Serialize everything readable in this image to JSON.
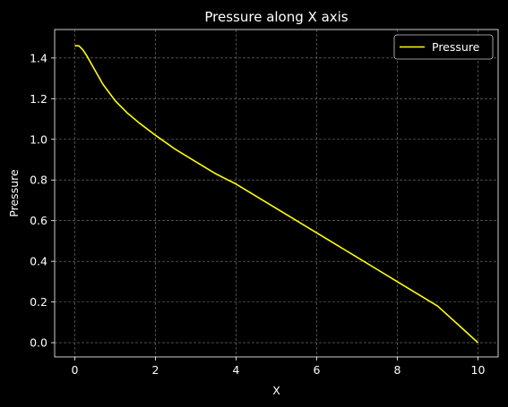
{
  "chart_data": {
    "type": "line",
    "title": "Pressure along X axis",
    "xlabel": "X",
    "ylabel": "Pressure",
    "xlim": [
      -0.5,
      10.5
    ],
    "ylim": [
      -0.07,
      1.54
    ],
    "xticks": [
      "0",
      "2",
      "4",
      "6",
      "8",
      "10"
    ],
    "yticks": [
      "0.0",
      "0.2",
      "0.4",
      "0.6",
      "0.8",
      "1.0",
      "1.2",
      "1.4"
    ],
    "grid": true,
    "legend": "top-right",
    "series": [
      {
        "name": "Pressure",
        "color": "#ffff00",
        "x": [
          0,
          0.1,
          0.2,
          0.3,
          0.5,
          0.7,
          1.0,
          1.3,
          1.6,
          2.0,
          2.5,
          3.0,
          3.5,
          4.0,
          4.5,
          5.0,
          5.5,
          6.0,
          6.5,
          7.0,
          7.5,
          8.0,
          8.5,
          9.0,
          9.5,
          10.0
        ],
        "y": [
          1.46,
          1.46,
          1.44,
          1.41,
          1.34,
          1.27,
          1.19,
          1.13,
          1.08,
          1.02,
          0.95,
          0.89,
          0.83,
          0.78,
          0.72,
          0.66,
          0.6,
          0.54,
          0.48,
          0.42,
          0.36,
          0.3,
          0.24,
          0.18,
          0.09,
          0.0
        ]
      }
    ]
  }
}
